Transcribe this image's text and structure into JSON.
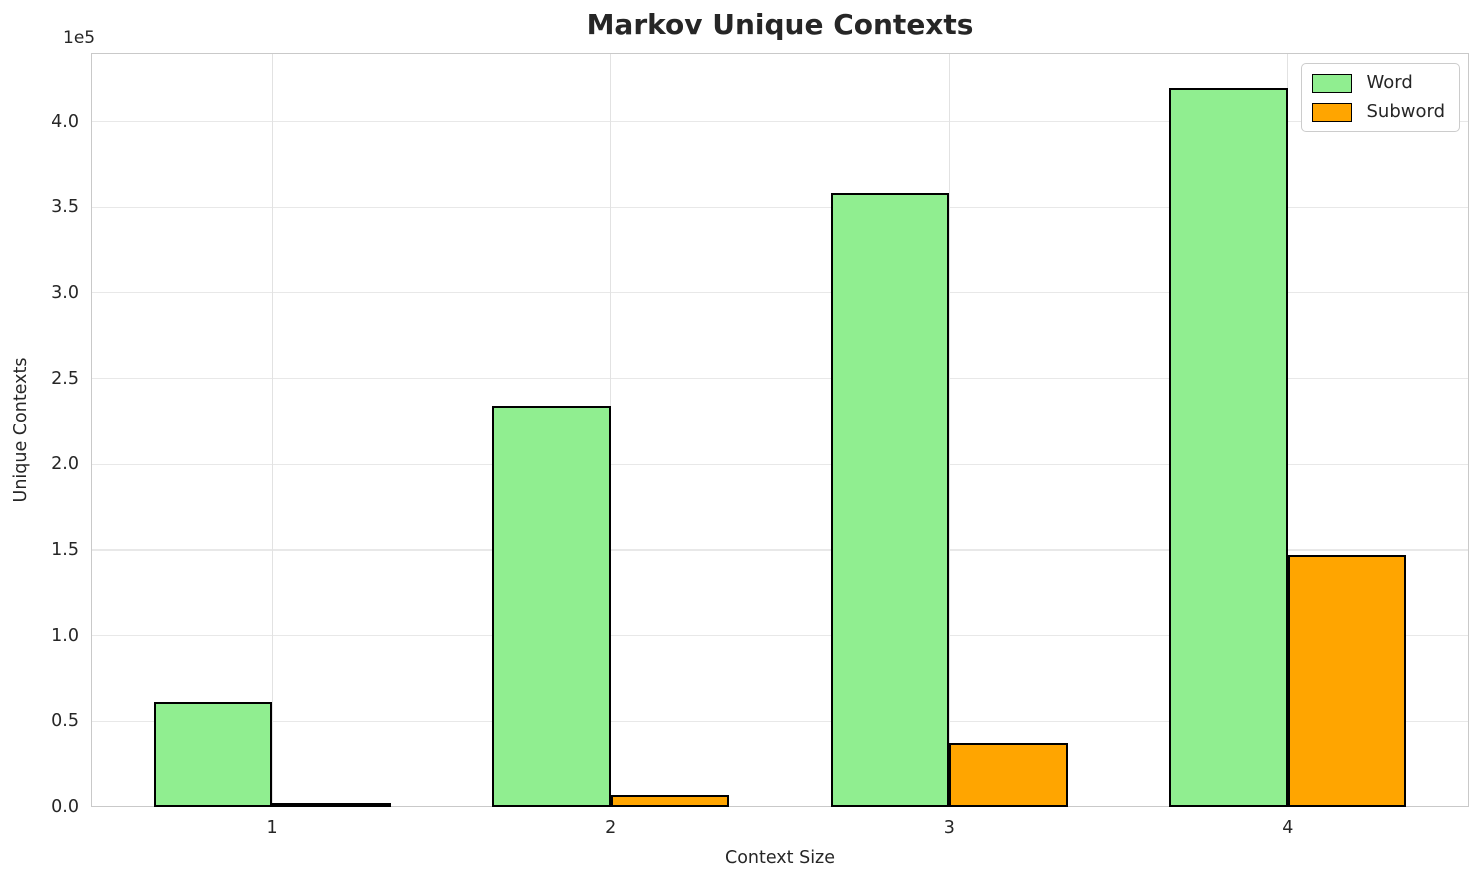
{
  "chart_data": {
    "type": "bar",
    "title": "Markov Unique Contexts",
    "xlabel": "Context Size",
    "ylabel": "Unique Contexts",
    "y_offset_label": "1e5",
    "categories": [
      "1",
      "2",
      "3",
      "4"
    ],
    "series": [
      {
        "name": "Word",
        "color": "#90ee90",
        "values": [
          61300,
          234000,
          358500,
          419300
        ]
      },
      {
        "name": "Subword",
        "color": "#ffa500",
        "values": [
          1100,
          6800,
          37300,
          147200
        ]
      }
    ],
    "bar_edge_color": "#000000",
    "bar_width": 0.35,
    "xlim": [
      -0.535,
      3.535
    ],
    "ylim": [
      0,
      440000
    ],
    "yticks": [
      0,
      50000,
      100000,
      150000,
      200000,
      250000,
      300000,
      350000,
      400000
    ],
    "ytick_labels": [
      "0.0",
      "0.5",
      "1.0",
      "1.5",
      "2.0",
      "2.5",
      "3.0",
      "3.5",
      "4.0"
    ],
    "grid": true,
    "legend_position": "upper right",
    "colors": {
      "grid": "#e8e8e8",
      "spine": "#c9c9c9",
      "text": "#262626",
      "background": "#ffffff"
    }
  }
}
